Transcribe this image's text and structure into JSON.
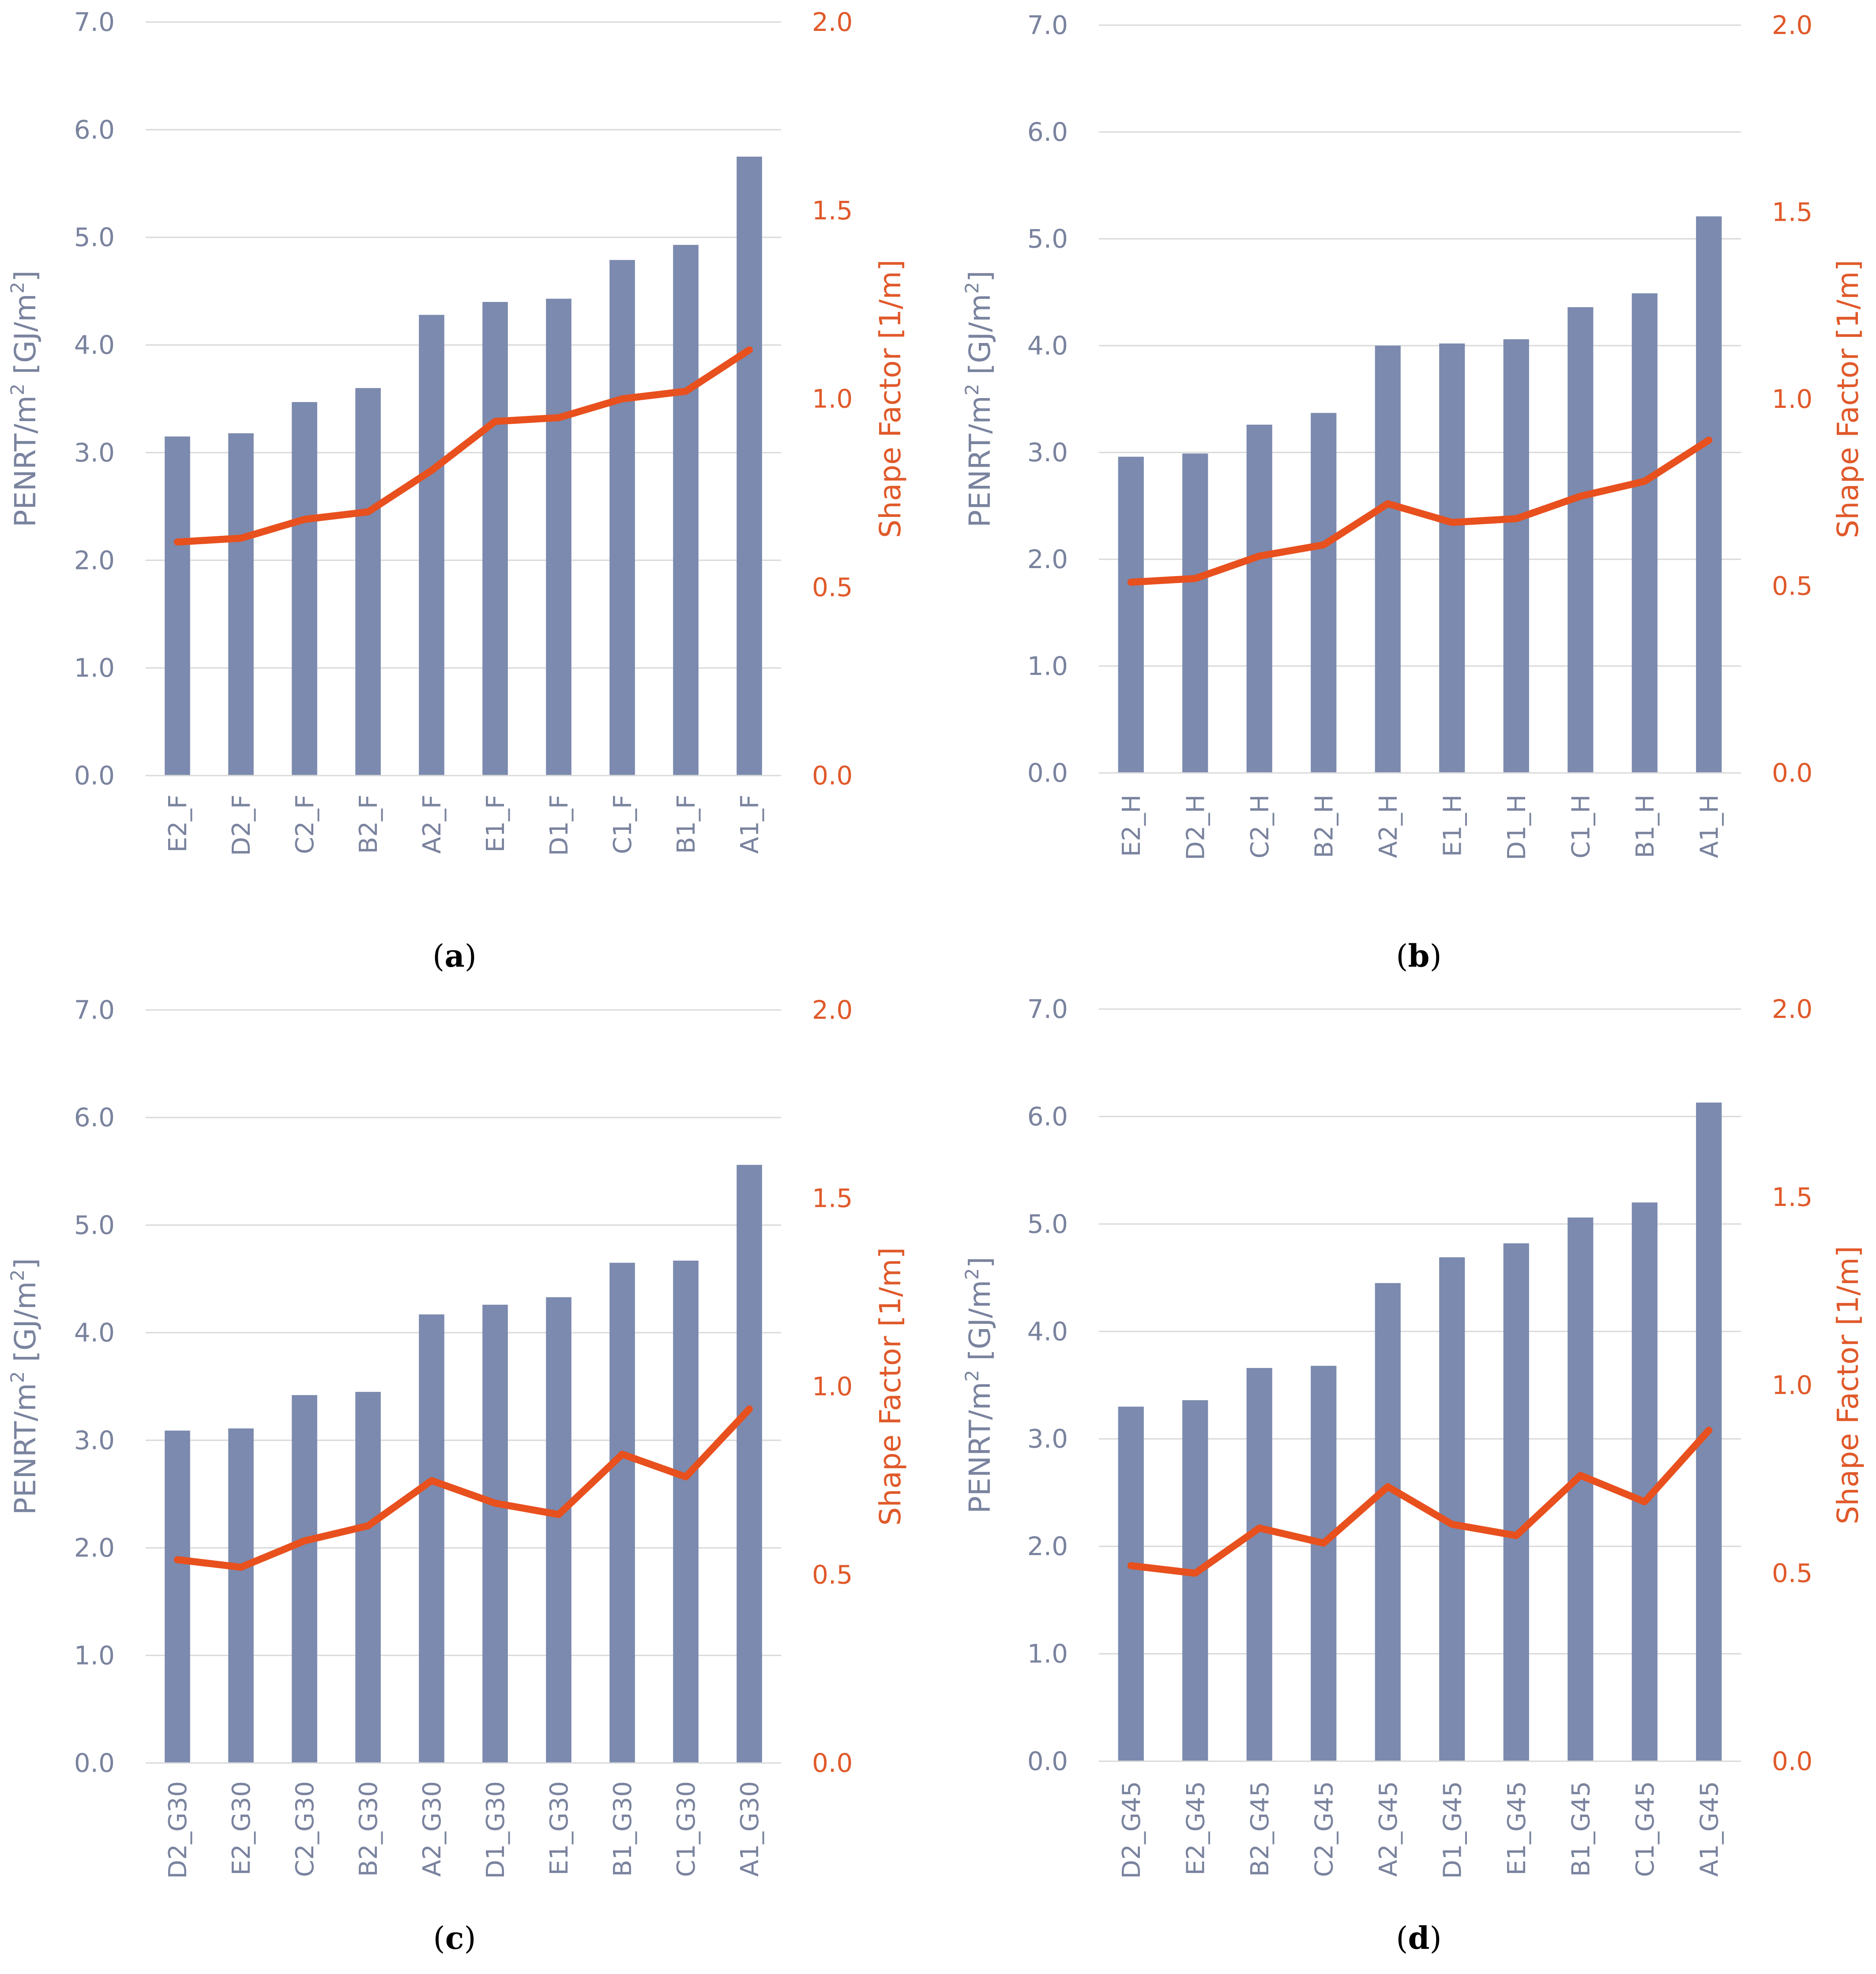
{
  "chart_data": [
    {
      "type": "bar",
      "panel_label": "a",
      "categories": [
        "E2_F",
        "D2_F",
        "C2_F",
        "B2_F",
        "A2_F",
        "E1_F",
        "D1_F",
        "C1_F",
        "B1_F",
        "A1_F"
      ],
      "series": [
        {
          "name": "PENRT/m²",
          "type": "bar",
          "axis": "left",
          "color": "#7b8aae",
          "values": [
            3.15,
            3.18,
            3.47,
            3.6,
            4.28,
            4.4,
            4.43,
            4.79,
            4.93,
            5.75
          ]
        },
        {
          "name": "Shape Factor",
          "type": "line",
          "axis": "right",
          "color": "#e8501e",
          "values": [
            0.62,
            0.63,
            0.68,
            0.7,
            0.81,
            0.94,
            0.95,
            1.0,
            1.02,
            1.13
          ]
        }
      ],
      "ylabel_left": "PENRT/m",
      "ylabel_left_sup1": "2",
      "ylabel_left_mid": " [GJ/m",
      "ylabel_left_sup2": "2",
      "ylabel_left_end": "]",
      "ylabel_right": "Shape Factor [1/m]",
      "ylim_left": [
        0,
        7
      ],
      "ylim_right": [
        0,
        2
      ],
      "yticks_left": [
        "0.0",
        "1.0",
        "2.0",
        "3.0",
        "4.0",
        "5.0",
        "6.0",
        "7.0"
      ],
      "yticks_right": [
        "0.0",
        "0.5",
        "1.0",
        "1.5",
        "2.0"
      ],
      "grid": true
    },
    {
      "type": "bar",
      "panel_label": "b",
      "categories": [
        "E2_H",
        "D2_H",
        "C2_H",
        "B2_H",
        "A2_H",
        "E1_H",
        "D1_H",
        "C1_H",
        "B1_H",
        "A1_H"
      ],
      "series": [
        {
          "name": "PENRT/m²",
          "type": "bar",
          "axis": "left",
          "color": "#7b8aae",
          "values": [
            2.96,
            2.99,
            3.26,
            3.37,
            4.0,
            4.02,
            4.06,
            4.36,
            4.49,
            5.21
          ]
        },
        {
          "name": "Shape Factor",
          "type": "line",
          "axis": "right",
          "color": "#e8501e",
          "values": [
            0.51,
            0.52,
            0.58,
            0.61,
            0.72,
            0.67,
            0.68,
            0.74,
            0.78,
            0.89
          ]
        }
      ],
      "ylabel_left": "PENRT/m",
      "ylabel_left_sup1": "2",
      "ylabel_left_mid": " [GJ/m",
      "ylabel_left_sup2": "2",
      "ylabel_left_end": "]",
      "ylabel_right": "Shape Factor [1/m]",
      "ylim_left": [
        0,
        7
      ],
      "ylim_right": [
        0,
        2
      ],
      "yticks_left": [
        "0.0",
        "1.0",
        "2.0",
        "3.0",
        "4.0",
        "5.0",
        "6.0",
        "7.0"
      ],
      "yticks_right": [
        "0.0",
        "0.5",
        "1.0",
        "1.5",
        "2.0"
      ],
      "grid": true
    },
    {
      "type": "bar",
      "panel_label": "c",
      "categories": [
        "D2_G30",
        "E2_G30",
        "C2_G30",
        "B2_G30",
        "A2_G30",
        "D1_G30",
        "E1_G30",
        "B1_G30",
        "C1_G30",
        "A1_G30"
      ],
      "series": [
        {
          "name": "PENRT/m²",
          "type": "bar",
          "axis": "left",
          "color": "#7b8aae",
          "values": [
            3.09,
            3.11,
            3.42,
            3.45,
            4.17,
            4.26,
            4.33,
            4.65,
            4.67,
            5.56
          ]
        },
        {
          "name": "Shape Factor",
          "type": "line",
          "axis": "right",
          "color": "#e8501e",
          "values": [
            0.54,
            0.52,
            0.59,
            0.63,
            0.75,
            0.69,
            0.66,
            0.82,
            0.76,
            0.94
          ]
        }
      ],
      "ylabel_left": "PENRT/m",
      "ylabel_left_sup1": "2",
      "ylabel_left_mid": " [GJ/m",
      "ylabel_left_sup2": "2",
      "ylabel_left_end": "]",
      "ylabel_right": "Shape Factor [1/m]",
      "ylim_left": [
        0,
        7
      ],
      "ylim_right": [
        0,
        2
      ],
      "yticks_left": [
        "0.0",
        "1.0",
        "2.0",
        "3.0",
        "4.0",
        "5.0",
        "6.0",
        "7.0"
      ],
      "yticks_right": [
        "0.0",
        "0.5",
        "1.0",
        "1.5",
        "2.0"
      ],
      "grid": true
    },
    {
      "type": "bar",
      "panel_label": "d",
      "categories": [
        "D2_G45",
        "E2_G45",
        "B2_G45",
        "C2_G45",
        "A2_G45",
        "D1_G45",
        "E1_G45",
        "B1_G45",
        "C1_G45",
        "A1_G45"
      ],
      "series": [
        {
          "name": "PENRT/m²",
          "type": "bar",
          "axis": "left",
          "color": "#7b8aae",
          "values": [
            3.3,
            3.36,
            3.66,
            3.68,
            4.45,
            4.69,
            4.82,
            5.06,
            5.2,
            6.13
          ]
        },
        {
          "name": "Shape Factor",
          "type": "line",
          "axis": "right",
          "color": "#e8501e",
          "values": [
            0.52,
            0.5,
            0.62,
            0.58,
            0.73,
            0.63,
            0.6,
            0.76,
            0.69,
            0.88
          ]
        }
      ],
      "ylabel_left": "PENRT/m",
      "ylabel_left_sup1": "2",
      "ylabel_left_mid": " [GJ/m",
      "ylabel_left_sup2": "2",
      "ylabel_left_end": "]",
      "ylabel_right": "Shape Factor [1/m]",
      "ylim_left": [
        0,
        7
      ],
      "ylim_right": [
        0,
        2
      ],
      "yticks_left": [
        "0.0",
        "1.0",
        "2.0",
        "3.0",
        "4.0",
        "5.0",
        "6.0",
        "7.0"
      ],
      "yticks_right": [
        "0.0",
        "0.5",
        "1.0",
        "1.5",
        "2.0"
      ],
      "grid": true
    }
  ]
}
